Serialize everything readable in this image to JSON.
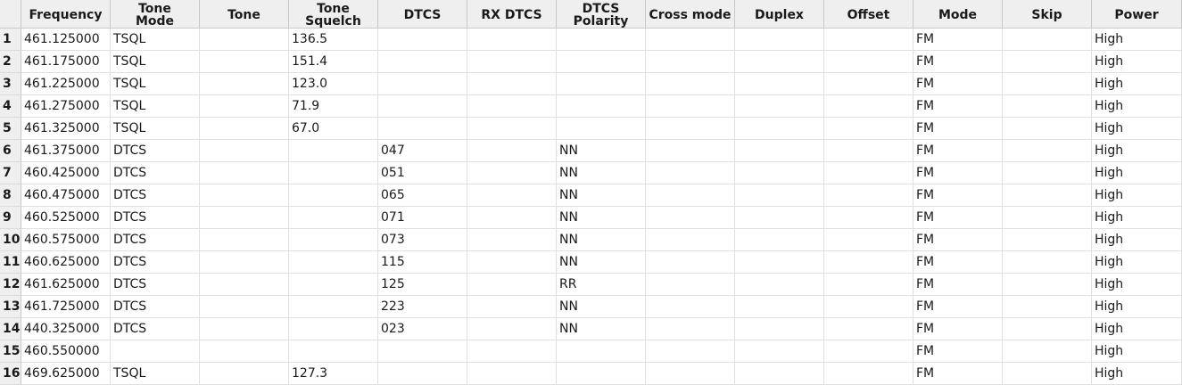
{
  "table": {
    "columns": [
      "Frequency",
      "Tone\nMode",
      "Tone",
      "Tone\nSquelch",
      "DTCS",
      "RX DTCS",
      "DTCS\nPolarity",
      "Cross mode",
      "Duplex",
      "Offset",
      "Mode",
      "Skip",
      "Power"
    ],
    "rows": [
      {
        "num": "1",
        "cells": [
          "461.125000",
          "TSQL",
          "",
          "136.5",
          "",
          "",
          "",
          "",
          "",
          "",
          "FM",
          "",
          "High"
        ]
      },
      {
        "num": "2",
        "cells": [
          "461.175000",
          "TSQL",
          "",
          "151.4",
          "",
          "",
          "",
          "",
          "",
          "",
          "FM",
          "",
          "High"
        ]
      },
      {
        "num": "3",
        "cells": [
          "461.225000",
          "TSQL",
          "",
          "123.0",
          "",
          "",
          "",
          "",
          "",
          "",
          "FM",
          "",
          "High"
        ]
      },
      {
        "num": "4",
        "cells": [
          "461.275000",
          "TSQL",
          "",
          "71.9",
          "",
          "",
          "",
          "",
          "",
          "",
          "FM",
          "",
          "High"
        ]
      },
      {
        "num": "5",
        "cells": [
          "461.325000",
          "TSQL",
          "",
          "67.0",
          "",
          "",
          "",
          "",
          "",
          "",
          "FM",
          "",
          "High"
        ]
      },
      {
        "num": "6",
        "cells": [
          "461.375000",
          "DTCS",
          "",
          "",
          "047",
          "",
          "NN",
          "",
          "",
          "",
          "FM",
          "",
          "High"
        ]
      },
      {
        "num": "7",
        "cells": [
          "460.425000",
          "DTCS",
          "",
          "",
          "051",
          "",
          "NN",
          "",
          "",
          "",
          "FM",
          "",
          "High"
        ]
      },
      {
        "num": "8",
        "cells": [
          "460.475000",
          "DTCS",
          "",
          "",
          "065",
          "",
          "NN",
          "",
          "",
          "",
          "FM",
          "",
          "High"
        ]
      },
      {
        "num": "9",
        "cells": [
          "460.525000",
          "DTCS",
          "",
          "",
          "071",
          "",
          "NN",
          "",
          "",
          "",
          "FM",
          "",
          "High"
        ]
      },
      {
        "num": "10",
        "cells": [
          "460.575000",
          "DTCS",
          "",
          "",
          "073",
          "",
          "NN",
          "",
          "",
          "",
          "FM",
          "",
          "High"
        ]
      },
      {
        "num": "11",
        "cells": [
          "460.625000",
          "DTCS",
          "",
          "",
          "115",
          "",
          "NN",
          "",
          "",
          "",
          "FM",
          "",
          "High"
        ]
      },
      {
        "num": "12",
        "cells": [
          "461.625000",
          "DTCS",
          "",
          "",
          "125",
          "",
          "RR",
          "",
          "",
          "",
          "FM",
          "",
          "High"
        ]
      },
      {
        "num": "13",
        "cells": [
          "461.725000",
          "DTCS",
          "",
          "",
          "223",
          "",
          "NN",
          "",
          "",
          "",
          "FM",
          "",
          "High"
        ]
      },
      {
        "num": "14",
        "cells": [
          "440.325000",
          "DTCS",
          "",
          "",
          "023",
          "",
          "NN",
          "",
          "",
          "",
          "FM",
          "",
          "High"
        ]
      },
      {
        "num": "15",
        "cells": [
          "460.550000",
          "",
          "",
          "",
          "",
          "",
          "",
          "",
          "",
          "",
          "FM",
          "",
          "High"
        ]
      },
      {
        "num": "16",
        "cells": [
          "469.625000",
          "TSQL",
          "",
          "127.3",
          "",
          "",
          "",
          "",
          "",
          "",
          "FM",
          "",
          "High"
        ]
      }
    ]
  }
}
